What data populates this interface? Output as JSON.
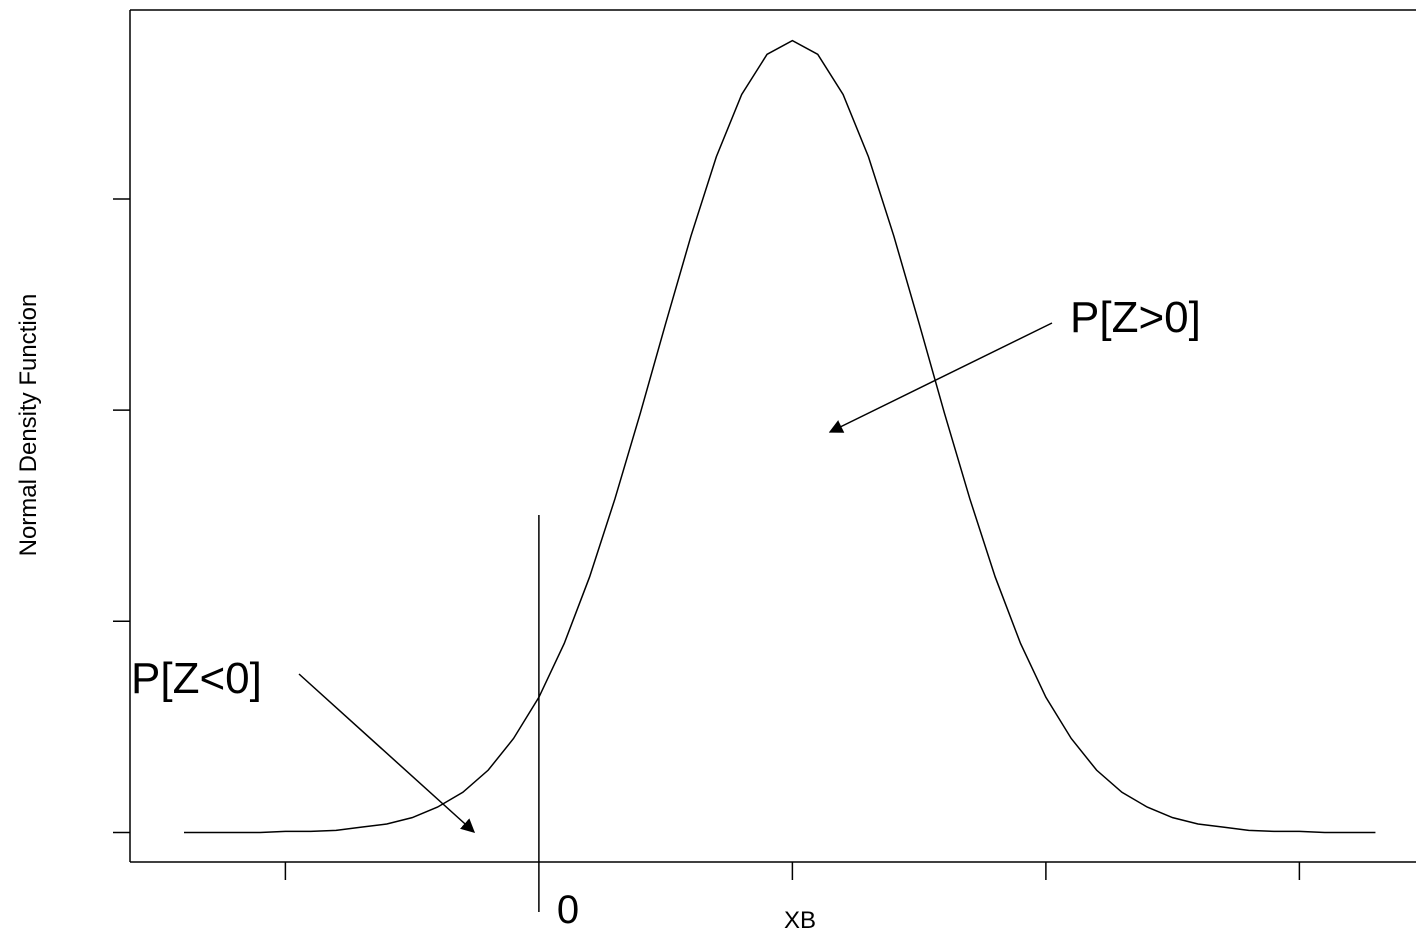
{
  "chart_data": {
    "type": "line",
    "y_label": "Normal Density Function",
    "x_label": "XB",
    "annotations": [
      "P[Z>0]",
      "P[Z<0]"
    ],
    "vline": 0,
    "x": [
      -1.4,
      -1.3,
      -1.2,
      -1.1,
      -1.0,
      -0.9,
      -0.8,
      -0.7,
      -0.6,
      -0.5,
      -0.4,
      -0.3,
      -0.2,
      -0.1,
      0.0,
      0.1,
      0.2,
      0.3,
      0.4,
      0.5,
      0.6,
      0.7,
      0.8,
      0.9,
      1.0,
      1.1,
      1.2,
      1.3,
      1.4,
      1.5,
      1.6,
      1.7,
      1.8,
      1.9,
      2.0,
      2.1,
      2.2,
      2.3,
      2.4,
      2.5,
      2.6,
      2.7,
      2.8,
      2.9,
      3.0,
      3.1,
      3.2,
      3.3
    ],
    "values": [
      0,
      0,
      0,
      0,
      0.001,
      0.001,
      0.002,
      0.005,
      0.008,
      0.014,
      0.024,
      0.038,
      0.059,
      0.089,
      0.128,
      0.179,
      0.242,
      0.316,
      0.397,
      0.482,
      0.565,
      0.64,
      0.699,
      0.737,
      0.75,
      0.737,
      0.699,
      0.64,
      0.565,
      0.482,
      0.397,
      0.316,
      0.242,
      0.179,
      0.128,
      0.089,
      0.059,
      0.038,
      0.024,
      0.014,
      0.008,
      0.005,
      0.002,
      0.001,
      0.001,
      0,
      0,
      0
    ],
    "color": "#000000",
    "xlim": [
      -1.613,
      3.46
    ],
    "ylim": [
      -0.028,
      0.779
    ],
    "xticks": [
      -1,
      1,
      2,
      3
    ],
    "yticks": [
      0,
      0.2,
      0.4,
      0.6
    ]
  }
}
